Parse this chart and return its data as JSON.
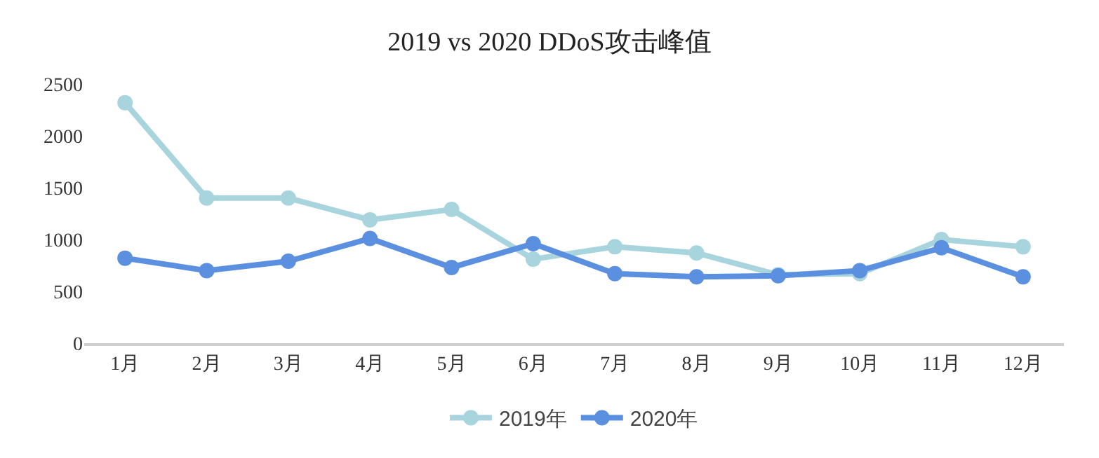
{
  "chart_data": {
    "type": "line",
    "title": "2019 vs 2020 DDoS攻击峰值",
    "categories": [
      "1月",
      "2月",
      "3月",
      "4月",
      "5月",
      "6月",
      "7月",
      "8月",
      "9月",
      "10月",
      "11月",
      "12月"
    ],
    "series": [
      {
        "name": "2019年",
        "color": "#a8d4de",
        "values": [
          2320,
          1400,
          1400,
          1190,
          1290,
          810,
          930,
          870,
          660,
          670,
          1000,
          930
        ]
      },
      {
        "name": "2020年",
        "color": "#5b8fe0",
        "values": [
          820,
          700,
          790,
          1010,
          730,
          960,
          670,
          640,
          650,
          700,
          920,
          640
        ]
      }
    ],
    "ylim": [
      0,
      2500
    ],
    "yticks": [
      0,
      500,
      1000,
      1500,
      2000,
      2500
    ],
    "legend": "bottom",
    "marker": "circle",
    "line_style": "solid"
  }
}
